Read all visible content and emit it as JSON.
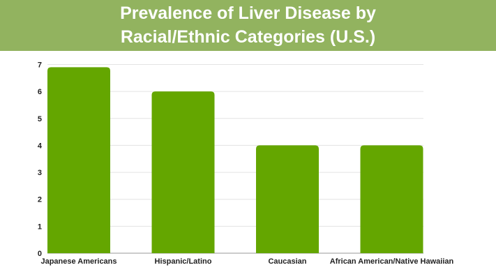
{
  "chart_data": {
    "type": "bar",
    "title": "Prevalence of Liver Disease by Racial/Ethnic Categories (U.S.)",
    "title_lines": [
      "Prevalence of Liver Disease by",
      "Racial/Ethnic Categories (U.S.)"
    ],
    "categories": [
      "Japanese Americans",
      "Hispanic/Latino",
      "Caucasian",
      "African American/Native Hawaiian"
    ],
    "values": [
      6.9,
      6,
      4,
      4
    ],
    "yticks": [
      "0",
      "1",
      "2",
      "3",
      "4",
      "5",
      "6",
      "7"
    ],
    "ylim": [
      0,
      7
    ],
    "xlabel": "",
    "ylabel": "",
    "grid": true,
    "bar_color": "#64a600",
    "header_color": "#92b35f"
  }
}
